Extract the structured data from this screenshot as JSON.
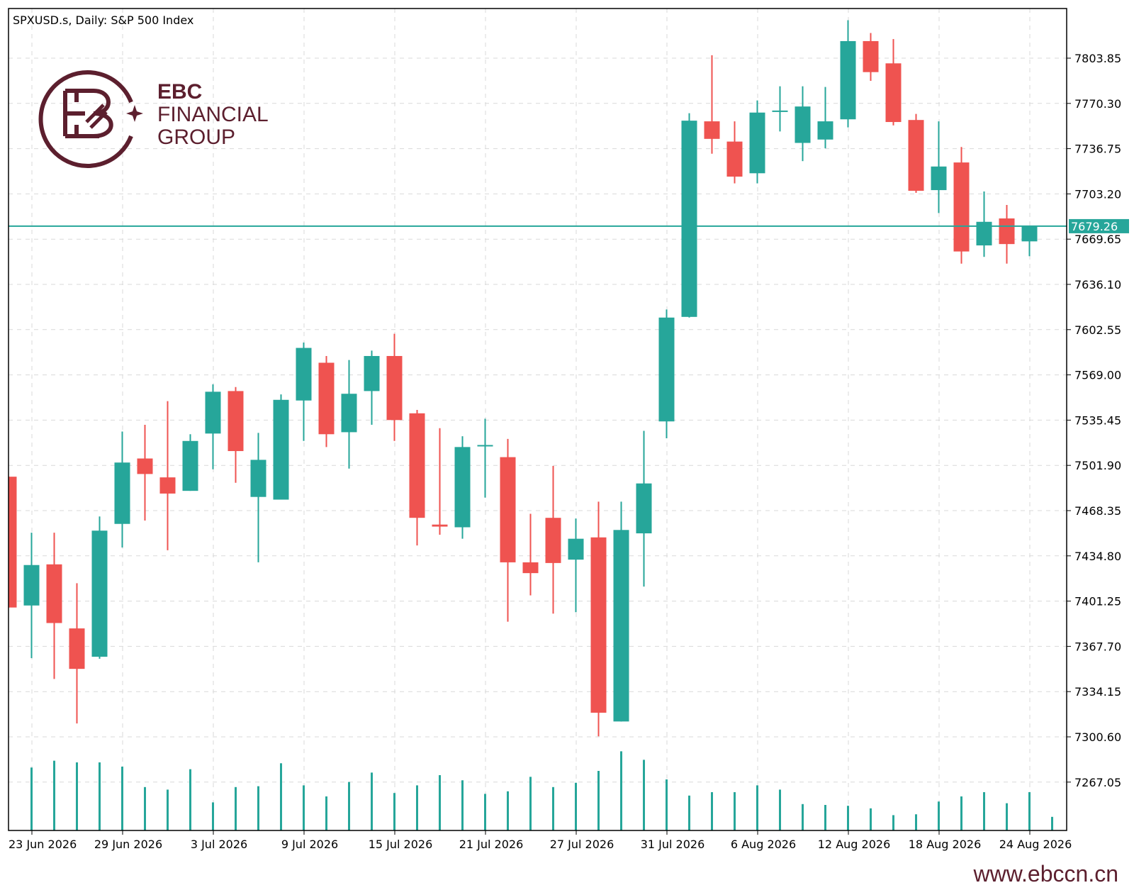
{
  "header": {
    "title": "SPXUSD.s, Daily:  S&P 500 Index"
  },
  "brand": {
    "line1": "EBC",
    "line2": "FINANCIAL",
    "line3": "GROUP",
    "logo_icon": "ebc-logo-icon",
    "color": "#5c1f2e"
  },
  "footer": {
    "website": "www.ebccn.cn"
  },
  "colors": {
    "up": "#26a69a",
    "down": "#ef5350",
    "grid": "#d9d9d9",
    "price_line": "#26a69a"
  },
  "chart_data": {
    "type": "candlestick",
    "symbol": "SPXUSD.s",
    "timeframe": "Daily",
    "instrument": "S&P 500 Index",
    "y_ticks": [
      "7803.85",
      "7770.30",
      "7736.75",
      "7703.20",
      "7669.65",
      "7636.10",
      "7602.55",
      "7569.00",
      "7535.45",
      "7501.90",
      "7468.35",
      "7434.80",
      "7401.25",
      "7367.70",
      "7334.15",
      "7300.60",
      "7267.05"
    ],
    "x_tick_labels": [
      {
        "bar": 1,
        "label": "23 Jun 2026"
      },
      {
        "bar": 5,
        "label": "29 Jun 2026"
      },
      {
        "bar": 9,
        "label": "3 Jul 2026"
      },
      {
        "bar": 13,
        "label": "9 Jul 2026"
      },
      {
        "bar": 17,
        "label": "15 Jul 2026"
      },
      {
        "bar": 21,
        "label": "21 Jul 2026"
      },
      {
        "bar": 25,
        "label": "27 Jul 2026"
      },
      {
        "bar": 29,
        "label": "31 Jul 2026"
      },
      {
        "bar": 33,
        "label": "6 Aug 2026"
      },
      {
        "bar": 37,
        "label": "12 Aug 2026"
      },
      {
        "bar": 41,
        "label": "18 Aug 2026"
      },
      {
        "bar": 45,
        "label": "24 Aug 2026"
      }
    ],
    "current_price": "7679.26",
    "current_price_value": 7679.26,
    "candles": [
      {
        "o": 7493.5,
        "h": 7493.5,
        "l": 7396.5,
        "c": 7396.5
      },
      {
        "o": 7398.0,
        "h": 7452.0,
        "l": 7359.0,
        "c": 7428.0
      },
      {
        "o": 7428.5,
        "h": 7452.0,
        "l": 7343.5,
        "c": 7385.0
      },
      {
        "o": 7381.0,
        "h": 7414.5,
        "l": 7310.5,
        "c": 7351.0
      },
      {
        "o": 7360.0,
        "h": 7464.0,
        "l": 7358.5,
        "c": 7453.5
      },
      {
        "o": 7458.5,
        "h": 7527.0,
        "l": 7441.0,
        "c": 7504.0
      },
      {
        "o": 7507.0,
        "h": 7532.0,
        "l": 7461.0,
        "c": 7495.5
      },
      {
        "o": 7493.0,
        "h": 7549.5,
        "l": 7439.0,
        "c": 7481.0
      },
      {
        "o": 7483.0,
        "h": 7525.0,
        "l": 7483.0,
        "c": 7520.0
      },
      {
        "o": 7525.5,
        "h": 7562.0,
        "l": 7499.0,
        "c": 7556.5
      },
      {
        "o": 7557.0,
        "h": 7560.0,
        "l": 7489.0,
        "c": 7512.5
      },
      {
        "o": 7478.5,
        "h": 7526.0,
        "l": 7430.0,
        "c": 7506.0
      },
      {
        "o": 7476.5,
        "h": 7554.5,
        "l": 7476.5,
        "c": 7550.5
      },
      {
        "o": 7550.0,
        "h": 7593.0,
        "l": 7520.0,
        "c": 7589.0
      },
      {
        "o": 7578.0,
        "h": 7583.0,
        "l": 7515.5,
        "c": 7525.0
      },
      {
        "o": 7526.5,
        "h": 7580.0,
        "l": 7499.5,
        "c": 7555.0
      },
      {
        "o": 7557.0,
        "h": 7587.0,
        "l": 7532.0,
        "c": 7583.0
      },
      {
        "o": 7583.0,
        "h": 7599.5,
        "l": 7520.0,
        "c": 7535.5
      },
      {
        "o": 7540.5,
        "h": 7543.0,
        "l": 7442.5,
        "c": 7463.0
      },
      {
        "o": 7458.0,
        "h": 7529.5,
        "l": 7450.5,
        "c": 7456.5
      },
      {
        "o": 7456.0,
        "h": 7523.5,
        "l": 7447.5,
        "c": 7515.5
      },
      {
        "o": 7517.0,
        "h": 7536.5,
        "l": 7478.0,
        "c": 7517.0
      },
      {
        "o": 7508.0,
        "h": 7521.5,
        "l": 7386.0,
        "c": 7430.0
      },
      {
        "o": 7430.0,
        "h": 7466.0,
        "l": 7405.5,
        "c": 7422.0
      },
      {
        "o": 7463.0,
        "h": 7501.5,
        "l": 7392.0,
        "c": 7429.5
      },
      {
        "o": 7432.0,
        "h": 7462.5,
        "l": 7393.0,
        "c": 7447.5
      },
      {
        "o": 7448.5,
        "h": 7475.0,
        "l": 7301.0,
        "c": 7318.5
      },
      {
        "o": 7312.0,
        "h": 7475.0,
        "l": 7312.0,
        "c": 7454.0
      },
      {
        "o": 7451.5,
        "h": 7527.5,
        "l": 7412.0,
        "c": 7488.5
      },
      {
        "o": 7534.5,
        "h": 7617.5,
        "l": 7522.0,
        "c": 7611.5
      },
      {
        "o": 7612.0,
        "h": 7763.0,
        "l": 7611.5,
        "c": 7757.5
      },
      {
        "o": 7757.0,
        "h": 7806.0,
        "l": 7733.0,
        "c": 7744.0
      },
      {
        "o": 7742.0,
        "h": 7757.0,
        "l": 7711.0,
        "c": 7716.0
      },
      {
        "o": 7718.5,
        "h": 7772.5,
        "l": 7711.0,
        "c": 7763.5
      },
      {
        "o": 7765.0,
        "h": 7783.0,
        "l": 7749.5,
        "c": 7765.0
      },
      {
        "o": 7741.0,
        "h": 7783.0,
        "l": 7727.5,
        "c": 7768.0
      },
      {
        "o": 7743.5,
        "h": 7782.5,
        "l": 7737.0,
        "c": 7757.0
      },
      {
        "o": 7758.5,
        "h": 7832.0,
        "l": 7752.5,
        "c": 7816.5
      },
      {
        "o": 7816.5,
        "h": 7822.5,
        "l": 7787.0,
        "c": 7793.5
      },
      {
        "o": 7800.0,
        "h": 7818.0,
        "l": 7754.0,
        "c": 7756.5
      },
      {
        "o": 7758.0,
        "h": 7762.5,
        "l": 7704.0,
        "c": 7705.5
      },
      {
        "o": 7706.0,
        "h": 7757.0,
        "l": 7689.0,
        "c": 7723.5
      },
      {
        "o": 7726.5,
        "h": 7738.0,
        "l": 7651.5,
        "c": 7660.5
      },
      {
        "o": 7665.0,
        "h": 7705.0,
        "l": 7656.5,
        "c": 7682.5
      },
      {
        "o": 7685.0,
        "h": 7695.0,
        "l": 7651.5,
        "c": 7666.0
      },
      {
        "o": 7668.0,
        "h": 7679.5,
        "l": 7657.0,
        "c": 7679.5
      }
    ],
    "volume": [
      0.74,
      0.82,
      0.8,
      0.8,
      0.75,
      0.51,
      0.48,
      0.72,
      0.33,
      0.51,
      0.52,
      0.79,
      0.53,
      0.4,
      0.57,
      0.68,
      0.44,
      0.53,
      0.65,
      0.59,
      0.43,
      0.46,
      0.63,
      0.51,
      0.56,
      0.7,
      0.93,
      0.83,
      0.6,
      0.41,
      0.45,
      0.45,
      0.53,
      0.48,
      0.31,
      0.3,
      0.29,
      0.26,
      0.18,
      0.19,
      0.34,
      0.4,
      0.45,
      0.32,
      0.45,
      0.16
    ]
  }
}
